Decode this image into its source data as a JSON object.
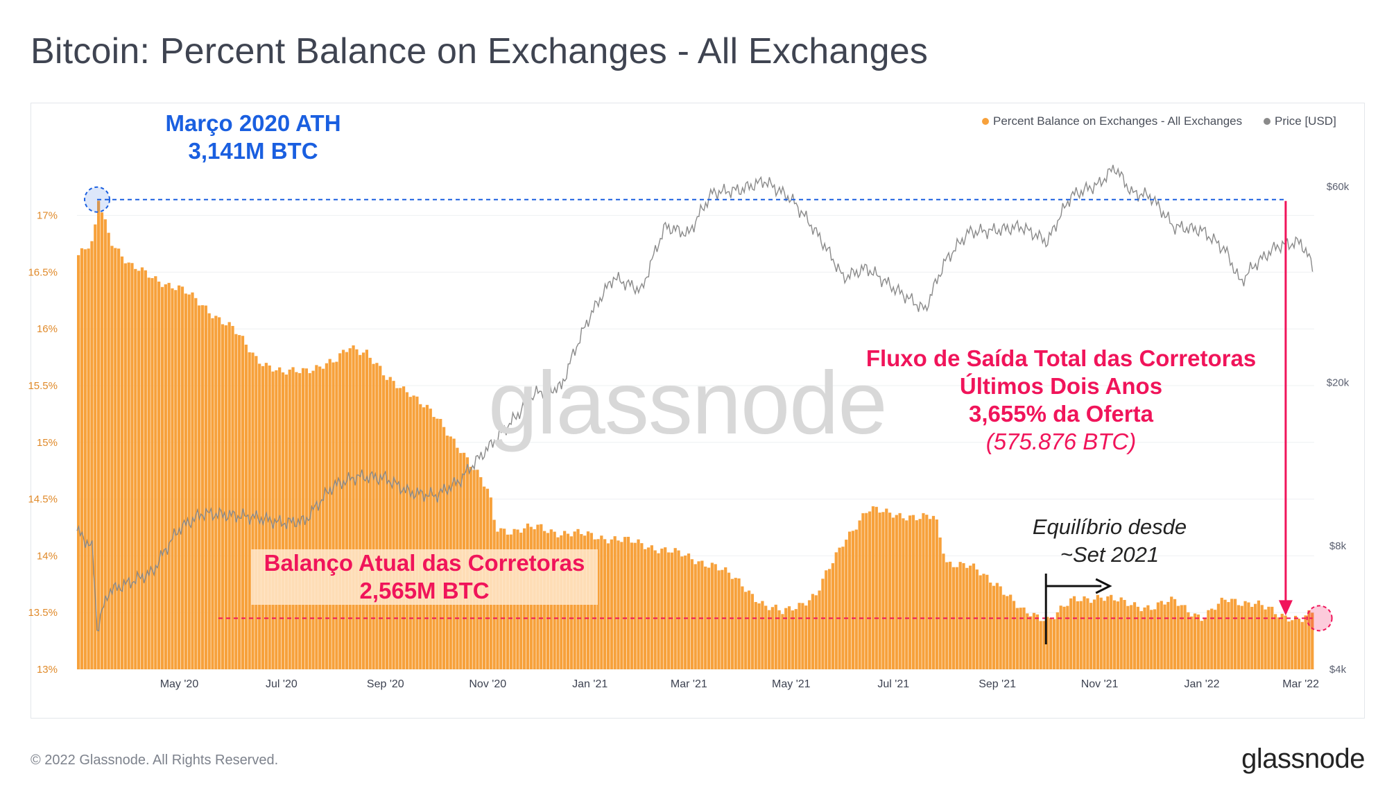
{
  "title": "Bitcoin: Percent Balance on Exchanges - All Exchanges",
  "footer": {
    "copyright": "© 2022 Glassnode. All Rights Reserved.",
    "logo": "glassnode"
  },
  "watermark": "glassnode",
  "colors": {
    "bars": "#f7a13b",
    "price": "#8a8a8a",
    "ath": "#1a5fe0",
    "current": "#f0145a",
    "axis_left": "#e08a2a"
  },
  "annotations": {
    "ath_line1": "Março 2020 ATH",
    "ath_line2": "3,141M BTC",
    "outflow_line1": "Fluxo de Saída Total das Corretoras",
    "outflow_line2": "Últimos Dois Anos",
    "outflow_line3": "3,655% da Oferta",
    "outflow_line4": "(575.876 BTC)",
    "balance_line1": "Balanço Atual das Corretoras",
    "balance_line2": "2,565M BTC",
    "equil_line1": "Equilíbrio desde",
    "equil_line2": "~Set 2021"
  },
  "chart_data": {
    "type": "bar",
    "legend_position": "top-right",
    "grid": true,
    "x_tick_labels": [
      "May '20",
      "Jul '20",
      "Sep '20",
      "Nov '20",
      "Jan '21",
      "Mar '21",
      "May '21",
      "Jul '21",
      "Sep '21",
      "Nov '21",
      "Jan '22",
      "Mar '22"
    ],
    "y_left": {
      "ticks": [
        "13%",
        "13.5%",
        "14%",
        "14.5%",
        "15%",
        "15.5%",
        "16%",
        "16.5%",
        "17%"
      ],
      "range": [
        13,
        17.45
      ]
    },
    "y_right": {
      "scale": "log",
      "ticks": [
        "$4k",
        "$8k",
        "$20k",
        "$60k"
      ],
      "range": [
        4000,
        68000
      ]
    },
    "series": [
      {
        "name": "Percent Balance on Exchanges - All Exchanges",
        "type": "bar",
        "color": "#f7a13b",
        "dates": [
          "2020-03-01",
          "2020-03-10",
          "2020-03-13",
          "2020-03-20",
          "2020-04-01",
          "2020-04-15",
          "2020-05-01",
          "2020-05-15",
          "2020-06-01",
          "2020-06-15",
          "2020-07-01",
          "2020-07-15",
          "2020-08-01",
          "2020-08-10",
          "2020-08-20",
          "2020-09-01",
          "2020-09-15",
          "2020-10-01",
          "2020-10-15",
          "2020-11-01",
          "2020-11-05",
          "2020-11-15",
          "2020-12-01",
          "2020-12-15",
          "2021-01-01",
          "2021-01-15",
          "2021-02-01",
          "2021-02-15",
          "2021-03-01",
          "2021-03-15",
          "2021-04-01",
          "2021-04-15",
          "2021-04-25",
          "2021-05-01",
          "2021-05-15",
          "2021-06-01",
          "2021-06-15",
          "2021-07-01",
          "2021-07-15",
          "2021-07-25",
          "2021-08-01",
          "2021-08-15",
          "2021-09-01",
          "2021-09-15",
          "2021-10-01",
          "2021-10-15",
          "2021-11-01",
          "2021-11-15",
          "2021-12-01",
          "2021-12-15",
          "2022-01-01",
          "2022-01-15",
          "2022-02-01",
          "2022-02-15",
          "2022-03-01",
          "2022-03-08"
        ],
        "values": [
          16.65,
          16.75,
          17.14,
          16.8,
          16.55,
          16.45,
          16.35,
          16.2,
          16.0,
          15.75,
          15.6,
          15.65,
          15.7,
          15.85,
          15.8,
          15.55,
          15.45,
          15.2,
          14.95,
          14.55,
          14.25,
          14.22,
          14.25,
          14.2,
          14.18,
          14.15,
          14.1,
          14.05,
          13.98,
          13.92,
          13.75,
          13.55,
          13.5,
          13.55,
          13.65,
          14.15,
          14.4,
          14.38,
          14.32,
          14.35,
          13.95,
          13.9,
          13.75,
          13.5,
          13.45,
          13.6,
          13.65,
          13.58,
          13.55,
          13.6,
          13.45,
          13.62,
          13.58,
          13.48,
          13.45,
          13.5
        ]
      },
      {
        "name": "Price [USD]",
        "type": "line",
        "color": "#8a8a8a",
        "dates": [
          "2020-03-01",
          "2020-03-10",
          "2020-03-13",
          "2020-03-20",
          "2020-04-01",
          "2020-04-15",
          "2020-05-01",
          "2020-05-15",
          "2020-06-01",
          "2020-06-15",
          "2020-07-01",
          "2020-07-15",
          "2020-08-01",
          "2020-08-15",
          "2020-09-01",
          "2020-09-15",
          "2020-10-01",
          "2020-10-15",
          "2020-11-01",
          "2020-11-15",
          "2020-12-01",
          "2020-12-15",
          "2021-01-01",
          "2021-01-15",
          "2021-02-01",
          "2021-02-15",
          "2021-03-01",
          "2021-03-15",
          "2021-04-01",
          "2021-04-15",
          "2021-05-01",
          "2021-05-15",
          "2021-06-01",
          "2021-06-15",
          "2021-07-01",
          "2021-07-20",
          "2021-08-01",
          "2021-08-15",
          "2021-09-01",
          "2021-09-15",
          "2021-10-01",
          "2021-10-15",
          "2021-11-01",
          "2021-11-10",
          "2021-11-20",
          "2021-12-01",
          "2021-12-15",
          "2022-01-01",
          "2022-01-15",
          "2022-01-24",
          "2022-02-01",
          "2022-02-15",
          "2022-03-01",
          "2022-03-08"
        ],
        "values": [
          8700,
          7900,
          5000,
          6200,
          6500,
          6900,
          8800,
          9600,
          9500,
          9400,
          9100,
          9200,
          11200,
          11800,
          11700,
          10800,
          10600,
          11500,
          13800,
          16000,
          19000,
          19500,
          29000,
          36000,
          33500,
          48000,
          46000,
          58000,
          59000,
          62000,
          56000,
          47000,
          36000,
          38000,
          34000,
          30000,
          39500,
          46500,
          47000,
          48000,
          44000,
          57000,
          61000,
          67000,
          58000,
          57000,
          48000,
          47000,
          42000,
          35000,
          38500,
          43000,
          44000,
          38500
        ]
      }
    ]
  }
}
